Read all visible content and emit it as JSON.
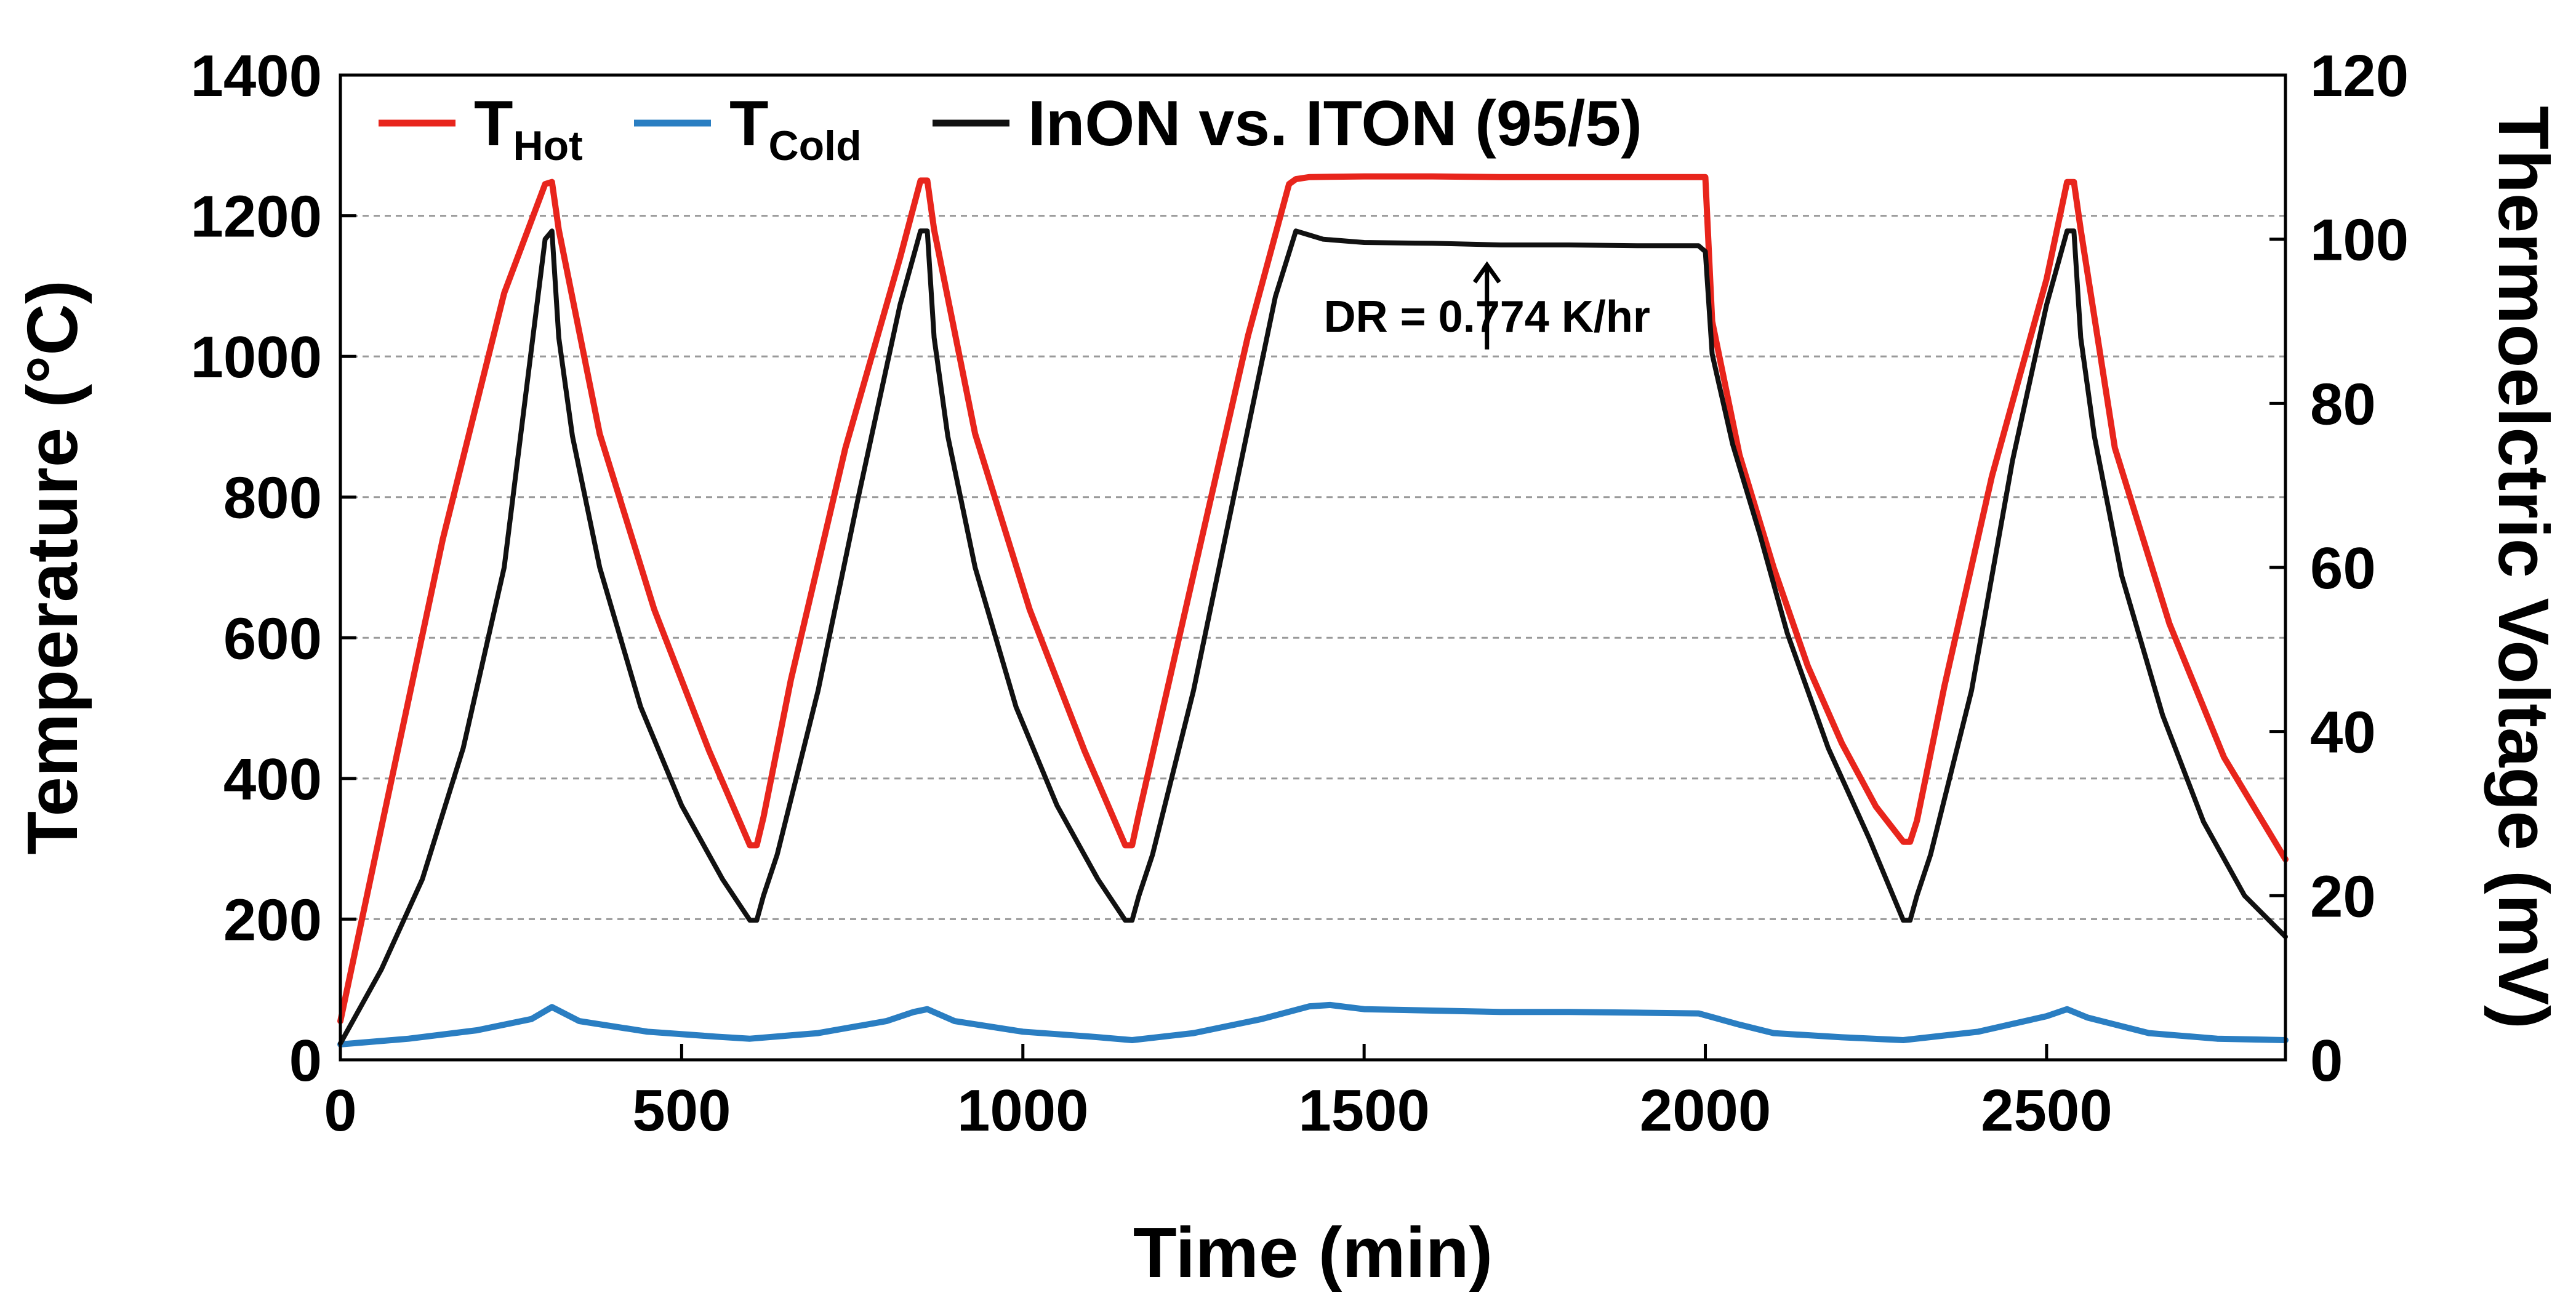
{
  "chart_data": {
    "type": "line",
    "title": "",
    "xlabel": "Time (min)",
    "ylabel": "Temperature (°C)",
    "y2label": "Thermoelctric Voltage (mV)",
    "xlim": [
      0,
      2850
    ],
    "ylim": [
      0,
      1400
    ],
    "y2lim": [
      0,
      120
    ],
    "grid": true,
    "legend_position": "top-left",
    "x_ticks": [
      0,
      500,
      1000,
      1500,
      2000,
      2500
    ],
    "y_ticks": [
      0,
      200,
      400,
      600,
      800,
      1000,
      1200,
      1400
    ],
    "y2_ticks": [
      0,
      20,
      40,
      60,
      80,
      100,
      120
    ],
    "legend": [
      {
        "label": "T",
        "sub": "Hot"
      },
      {
        "label": "T",
        "sub": "Cold"
      },
      {
        "label": "InON vs. ITON (95/5)",
        "sub": ""
      }
    ],
    "annotation": {
      "text": "DR = 0.774 K/hr",
      "x": 1680,
      "y": 1000
    },
    "series": [
      {
        "name": "T_Hot",
        "axis": "left",
        "color": "#e8251c",
        "x": [
          0,
          60,
          150,
          240,
          300,
          310,
          320,
          380,
          460,
          540,
          600,
          610,
          620,
          660,
          740,
          820,
          850,
          860,
          870,
          930,
          1010,
          1090,
          1150,
          1160,
          1170,
          1250,
          1330,
          1390,
          1400,
          1420,
          1500,
          1600,
          1700,
          1800,
          1900,
          1990,
          2000,
          2010,
          2050,
          2100,
          2150,
          2200,
          2250,
          2290,
          2300,
          2310,
          2350,
          2420,
          2500,
          2530,
          2540,
          2550,
          2600,
          2680,
          2760,
          2850
        ],
        "values": [
          55,
          330,
          740,
          1090,
          1245,
          1248,
          1180,
          890,
          640,
          440,
          305,
          305,
          345,
          540,
          870,
          1140,
          1250,
          1250,
          1180,
          890,
          640,
          440,
          305,
          305,
          350,
          690,
          1030,
          1245,
          1252,
          1255,
          1256,
          1256,
          1255,
          1255,
          1255,
          1255,
          1255,
          1050,
          860,
          700,
          560,
          450,
          360,
          310,
          310,
          340,
          530,
          830,
          1110,
          1248,
          1248,
          1180,
          870,
          620,
          430,
          285
        ]
      },
      {
        "name": "T_Cold",
        "axis": "left",
        "color": "#2a7ec2",
        "x": [
          0,
          100,
          200,
          280,
          310,
          350,
          450,
          550,
          600,
          700,
          800,
          840,
          860,
          900,
          1000,
          1100,
          1160,
          1250,
          1350,
          1420,
          1450,
          1500,
          1600,
          1700,
          1800,
          1900,
          1990,
          2050,
          2100,
          2200,
          2290,
          2400,
          2500,
          2530,
          2560,
          2650,
          2750,
          2850
        ],
        "values": [
          22,
          30,
          42,
          58,
          75,
          55,
          40,
          33,
          30,
          38,
          55,
          68,
          72,
          55,
          40,
          33,
          28,
          38,
          58,
          76,
          78,
          72,
          70,
          68,
          68,
          67,
          66,
          50,
          38,
          32,
          28,
          40,
          62,
          72,
          60,
          38,
          30,
          28
        ]
      },
      {
        "name": "InON vs. ITON (95/5)",
        "axis": "right",
        "color": "#111111",
        "x": [
          0,
          20,
          60,
          120,
          180,
          240,
          300,
          310,
          320,
          340,
          380,
          440,
          500,
          560,
          600,
          610,
          620,
          640,
          700,
          760,
          820,
          850,
          860,
          870,
          890,
          930,
          990,
          1050,
          1110,
          1150,
          1160,
          1170,
          1190,
          1250,
          1310,
          1370,
          1400,
          1420,
          1440,
          1500,
          1600,
          1700,
          1800,
          1900,
          1990,
          2000,
          2010,
          2040,
          2080,
          2120,
          2180,
          2240,
          2290,
          2300,
          2310,
          2330,
          2390,
          2450,
          2500,
          2530,
          2540,
          2550,
          2570,
          2610,
          2670,
          2730,
          2790,
          2850
        ],
        "values": [
          2,
          5,
          11,
          22,
          38,
          60,
          100,
          101,
          88,
          76,
          60,
          43,
          31,
          22,
          17,
          17,
          20,
          25,
          45,
          69,
          92,
          101,
          101,
          88,
          76,
          60,
          43,
          31,
          22,
          17,
          17,
          20,
          25,
          45,
          69,
          93,
          101,
          100.5,
          100,
          99.6,
          99.5,
          99.3,
          99.3,
          99.2,
          99.2,
          98.5,
          86,
          75,
          64,
          52,
          38,
          27,
          17,
          17,
          20,
          25,
          45,
          73,
          92,
          101,
          101,
          88,
          76,
          59,
          42,
          29,
          20,
          15
        ]
      }
    ]
  }
}
